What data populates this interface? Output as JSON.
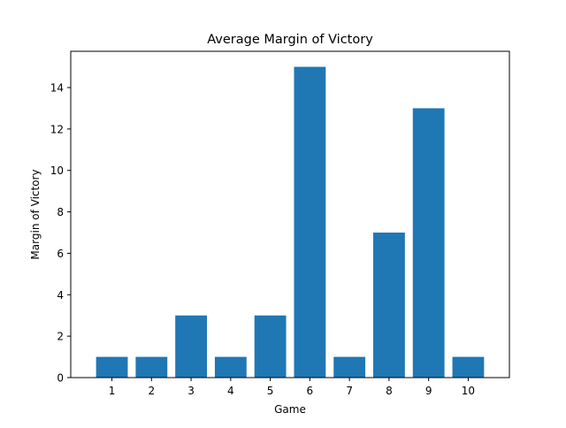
{
  "chart_data": {
    "type": "bar",
    "title": "Average Margin of Victory",
    "xlabel": "Game",
    "ylabel": "Margin of Victory",
    "categories": [
      "1",
      "2",
      "3",
      "4",
      "5",
      "6",
      "7",
      "8",
      "9",
      "10"
    ],
    "values": [
      1,
      1,
      3,
      1,
      3,
      15,
      1,
      7,
      13,
      1
    ],
    "ylim": [
      0,
      15.75
    ],
    "yticks": [
      0,
      2,
      4,
      6,
      8,
      10,
      12,
      14
    ],
    "grid": false,
    "legend": "none",
    "bar_color": "#1f77b4"
  }
}
